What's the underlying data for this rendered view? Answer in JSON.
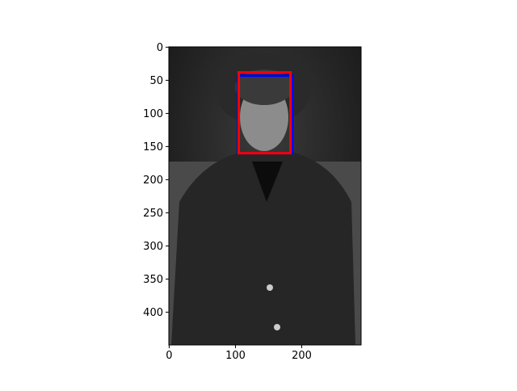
{
  "chart_data": {
    "type": "image",
    "xlim": [
      -0.5,
      289.5
    ],
    "ylim": [
      449.5,
      -0.5
    ],
    "xticks": [
      0,
      100,
      200
    ],
    "yticks": [
      0,
      50,
      100,
      150,
      200,
      250,
      300,
      350,
      400
    ],
    "boxes": [
      {
        "color": "#0000ff",
        "x": [
          104,
          186
        ],
        "y": [
          43,
          160
        ]
      },
      {
        "color": "#ff0000",
        "x": [
          105,
          183
        ],
        "y": [
          38,
          160
        ]
      }
    ]
  }
}
